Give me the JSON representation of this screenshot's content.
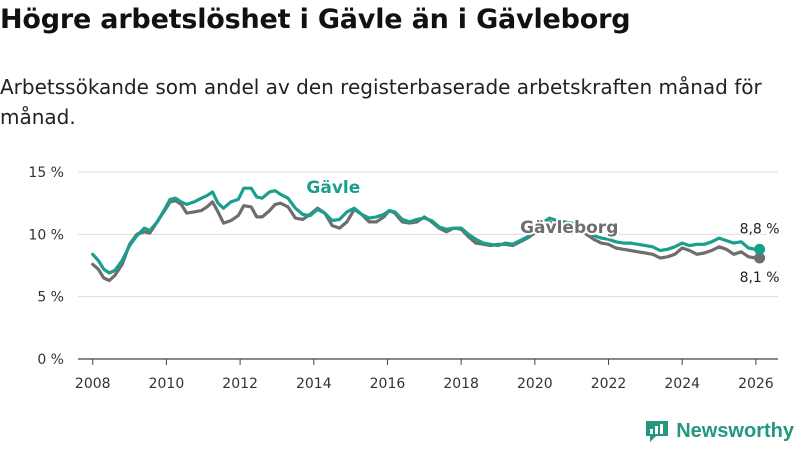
{
  "title": "Högre arbetslöshet i Gävle än i Gävleborg",
  "subtitle": "Arbetssökande som andel av den registerbaserade arbetskraften månad för månad.",
  "brand": {
    "name": "Newsworthy",
    "icon": "newsworthy-logo-icon",
    "color": "#23977f"
  },
  "colors": {
    "gavle": "#1a9f8e",
    "gavleborg": "#6e6e6e",
    "grid": "#dddddd",
    "axis": "#444444"
  },
  "chart_data": {
    "type": "line",
    "title": "Högre arbetslöshet i Gävle än i Gävleborg",
    "xlabel": "",
    "ylabel": "",
    "xlim": [
      2007.6,
      2026.6
    ],
    "ylim": [
      0,
      15
    ],
    "grid": true,
    "x_ticks": [
      {
        "value": 2008,
        "label": "2008"
      },
      {
        "value": 2010,
        "label": "2010"
      },
      {
        "value": 2012,
        "label": "2012"
      },
      {
        "value": 2014,
        "label": "2014"
      },
      {
        "value": 2016,
        "label": "2016"
      },
      {
        "value": 2018,
        "label": "2018"
      },
      {
        "value": 2020,
        "label": "2020"
      },
      {
        "value": 2022,
        "label": "2022"
      },
      {
        "value": 2024,
        "label": "2024"
      },
      {
        "value": 2026,
        "label": "2026"
      }
    ],
    "y_ticks": [
      {
        "value": 0,
        "label": "0 %"
      },
      {
        "value": 5,
        "label": "5 %"
      },
      {
        "value": 10,
        "label": "10 %"
      },
      {
        "value": 15,
        "label": "15 %"
      }
    ],
    "series": [
      {
        "name": "Gävle",
        "label": "Gävle",
        "color": "#1a9f8e",
        "end_label": "8,8 %",
        "points": [
          [
            2008.0,
            8.4
          ],
          [
            2008.15,
            7.9
          ],
          [
            2008.3,
            7.2
          ],
          [
            2008.45,
            6.9
          ],
          [
            2008.6,
            7.1
          ],
          [
            2008.8,
            7.9
          ],
          [
            2009.0,
            9.1
          ],
          [
            2009.2,
            9.9
          ],
          [
            2009.4,
            10.5
          ],
          [
            2009.55,
            10.3
          ],
          [
            2009.75,
            11.0
          ],
          [
            2009.95,
            12.0
          ],
          [
            2010.1,
            12.8
          ],
          [
            2010.25,
            12.9
          ],
          [
            2010.4,
            12.6
          ],
          [
            2010.55,
            12.4
          ],
          [
            2010.75,
            12.6
          ],
          [
            2010.95,
            12.9
          ],
          [
            2011.1,
            13.1
          ],
          [
            2011.25,
            13.4
          ],
          [
            2011.4,
            12.5
          ],
          [
            2011.55,
            12.1
          ],
          [
            2011.75,
            12.6
          ],
          [
            2011.95,
            12.8
          ],
          [
            2012.1,
            13.7
          ],
          [
            2012.3,
            13.7
          ],
          [
            2012.45,
            13.0
          ],
          [
            2012.6,
            12.9
          ],
          [
            2012.8,
            13.4
          ],
          [
            2012.95,
            13.5
          ],
          [
            2013.1,
            13.2
          ],
          [
            2013.3,
            12.9
          ],
          [
            2013.5,
            12.1
          ],
          [
            2013.7,
            11.6
          ],
          [
            2013.9,
            11.5
          ],
          [
            2014.1,
            12.0
          ],
          [
            2014.3,
            11.7
          ],
          [
            2014.5,
            11.1
          ],
          [
            2014.7,
            11.2
          ],
          [
            2014.9,
            11.8
          ],
          [
            2015.1,
            12.1
          ],
          [
            2015.3,
            11.6
          ],
          [
            2015.5,
            11.3
          ],
          [
            2015.7,
            11.4
          ],
          [
            2015.9,
            11.6
          ],
          [
            2016.05,
            11.9
          ],
          [
            2016.2,
            11.8
          ],
          [
            2016.4,
            11.2
          ],
          [
            2016.6,
            11.0
          ],
          [
            2016.8,
            11.2
          ],
          [
            2017.0,
            11.3
          ],
          [
            2017.2,
            11.1
          ],
          [
            2017.4,
            10.6
          ],
          [
            2017.6,
            10.4
          ],
          [
            2017.8,
            10.5
          ],
          [
            2018.0,
            10.5
          ],
          [
            2018.2,
            10.0
          ],
          [
            2018.4,
            9.6
          ],
          [
            2018.6,
            9.3
          ],
          [
            2018.8,
            9.2
          ],
          [
            2019.0,
            9.1
          ],
          [
            2019.2,
            9.3
          ],
          [
            2019.4,
            9.2
          ],
          [
            2019.6,
            9.5
          ],
          [
            2019.8,
            9.8
          ],
          [
            2020.0,
            10.2
          ],
          [
            2020.2,
            10.9
          ],
          [
            2020.4,
            11.3
          ],
          [
            2020.6,
            11.1
          ],
          [
            2020.8,
            11.0
          ],
          [
            2021.0,
            10.9
          ],
          [
            2021.2,
            10.8
          ],
          [
            2021.4,
            10.4
          ],
          [
            2021.6,
            9.9
          ],
          [
            2021.8,
            9.7
          ],
          [
            2022.0,
            9.6
          ],
          [
            2022.2,
            9.4
          ],
          [
            2022.4,
            9.3
          ],
          [
            2022.6,
            9.3
          ],
          [
            2022.8,
            9.2
          ],
          [
            2023.0,
            9.1
          ],
          [
            2023.2,
            9.0
          ],
          [
            2023.4,
            8.7
          ],
          [
            2023.6,
            8.8
          ],
          [
            2023.8,
            9.0
          ],
          [
            2024.0,
            9.3
          ],
          [
            2024.2,
            9.1
          ],
          [
            2024.4,
            9.2
          ],
          [
            2024.6,
            9.2
          ],
          [
            2024.8,
            9.4
          ],
          [
            2025.0,
            9.7
          ],
          [
            2025.2,
            9.5
          ],
          [
            2025.4,
            9.3
          ],
          [
            2025.6,
            9.4
          ],
          [
            2025.8,
            8.9
          ],
          [
            2026.0,
            8.8
          ],
          [
            2026.1,
            8.8
          ]
        ]
      },
      {
        "name": "Gävleborg",
        "label": "Gävleborg",
        "color": "#6e6e6e",
        "end_label": "8,1 %",
        "points": [
          [
            2008.0,
            7.6
          ],
          [
            2008.15,
            7.2
          ],
          [
            2008.3,
            6.5
          ],
          [
            2008.45,
            6.3
          ],
          [
            2008.6,
            6.7
          ],
          [
            2008.8,
            7.6
          ],
          [
            2009.0,
            9.2
          ],
          [
            2009.2,
            10.0
          ],
          [
            2009.4,
            10.2
          ],
          [
            2009.55,
            10.1
          ],
          [
            2009.75,
            11.0
          ],
          [
            2009.95,
            11.9
          ],
          [
            2010.1,
            12.6
          ],
          [
            2010.25,
            12.7
          ],
          [
            2010.4,
            12.4
          ],
          [
            2010.55,
            11.7
          ],
          [
            2010.75,
            11.8
          ],
          [
            2010.95,
            11.9
          ],
          [
            2011.1,
            12.2
          ],
          [
            2011.25,
            12.6
          ],
          [
            2011.4,
            11.8
          ],
          [
            2011.55,
            10.9
          ],
          [
            2011.75,
            11.1
          ],
          [
            2011.95,
            11.5
          ],
          [
            2012.1,
            12.3
          ],
          [
            2012.3,
            12.2
          ],
          [
            2012.45,
            11.4
          ],
          [
            2012.6,
            11.4
          ],
          [
            2012.8,
            11.9
          ],
          [
            2012.95,
            12.4
          ],
          [
            2013.1,
            12.5
          ],
          [
            2013.3,
            12.2
          ],
          [
            2013.5,
            11.3
          ],
          [
            2013.7,
            11.2
          ],
          [
            2013.9,
            11.6
          ],
          [
            2014.1,
            12.1
          ],
          [
            2014.3,
            11.7
          ],
          [
            2014.5,
            10.7
          ],
          [
            2014.7,
            10.5
          ],
          [
            2014.9,
            11.0
          ],
          [
            2015.1,
            12.0
          ],
          [
            2015.3,
            11.6
          ],
          [
            2015.5,
            11.0
          ],
          [
            2015.7,
            11.0
          ],
          [
            2015.9,
            11.4
          ],
          [
            2016.05,
            11.9
          ],
          [
            2016.2,
            11.7
          ],
          [
            2016.4,
            11.0
          ],
          [
            2016.6,
            10.9
          ],
          [
            2016.8,
            11.0
          ],
          [
            2017.0,
            11.4
          ],
          [
            2017.2,
            11.0
          ],
          [
            2017.4,
            10.5
          ],
          [
            2017.6,
            10.2
          ],
          [
            2017.8,
            10.5
          ],
          [
            2018.0,
            10.4
          ],
          [
            2018.2,
            9.8
          ],
          [
            2018.4,
            9.3
          ],
          [
            2018.6,
            9.2
          ],
          [
            2018.8,
            9.1
          ],
          [
            2019.0,
            9.2
          ],
          [
            2019.2,
            9.2
          ],
          [
            2019.4,
            9.1
          ],
          [
            2019.6,
            9.4
          ],
          [
            2019.8,
            9.7
          ],
          [
            2020.0,
            10.1
          ],
          [
            2020.2,
            10.7
          ],
          [
            2020.4,
            11.0
          ],
          [
            2020.6,
            10.8
          ],
          [
            2020.8,
            10.7
          ],
          [
            2021.0,
            10.6
          ],
          [
            2021.2,
            10.5
          ],
          [
            2021.4,
            10.0
          ],
          [
            2021.6,
            9.6
          ],
          [
            2021.8,
            9.3
          ],
          [
            2022.0,
            9.2
          ],
          [
            2022.2,
            8.9
          ],
          [
            2022.4,
            8.8
          ],
          [
            2022.6,
            8.7
          ],
          [
            2022.8,
            8.6
          ],
          [
            2023.0,
            8.5
          ],
          [
            2023.2,
            8.4
          ],
          [
            2023.4,
            8.1
          ],
          [
            2023.6,
            8.2
          ],
          [
            2023.8,
            8.4
          ],
          [
            2024.0,
            8.9
          ],
          [
            2024.2,
            8.7
          ],
          [
            2024.4,
            8.4
          ],
          [
            2024.6,
            8.5
          ],
          [
            2024.8,
            8.7
          ],
          [
            2025.0,
            9.0
          ],
          [
            2025.2,
            8.8
          ],
          [
            2025.4,
            8.4
          ],
          [
            2025.6,
            8.6
          ],
          [
            2025.8,
            8.2
          ],
          [
            2026.0,
            8.1
          ],
          [
            2026.1,
            8.1
          ]
        ]
      }
    ]
  }
}
